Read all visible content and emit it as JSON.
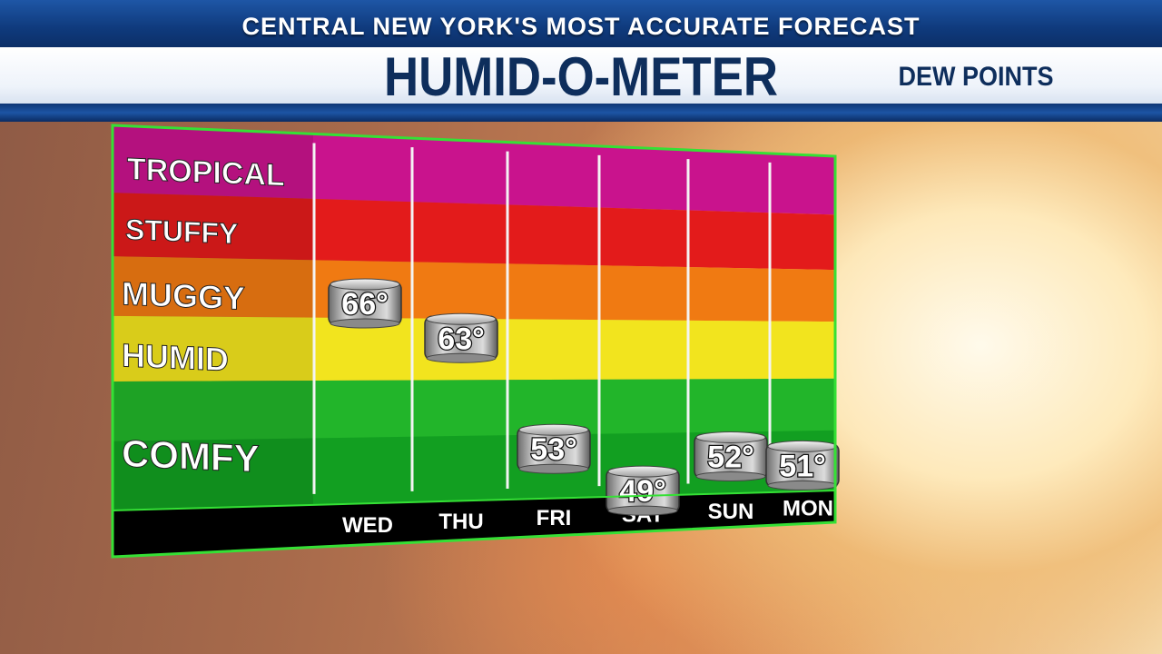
{
  "header": {
    "tagline": "CENTRAL NEW YORK'S MOST ACCURATE FORECAST",
    "title": "HUMID-O-METER",
    "subtitle": "DEW POINTS"
  },
  "colors": {
    "tropical": "#c9138d",
    "stuffy": "#e31b1b",
    "muggy": "#f07a12",
    "humid": "#f2e41e",
    "comfy_top": "#22b52a",
    "comfy_bottom": "#0f9a1f",
    "frame": "#35e035"
  },
  "chart_data": {
    "type": "table",
    "title": "HUMID-O-METER",
    "subtitle": "DEW POINTS",
    "levels": [
      "TROPICAL",
      "STUFFY",
      "MUGGY",
      "HUMID",
      "COMFY"
    ],
    "categories": [
      "WED",
      "THU",
      "FRI",
      "SAT",
      "SUN",
      "MON"
    ],
    "values": [
      66,
      63,
      53,
      49,
      52,
      51
    ],
    "value_labels": [
      "66°",
      "63°",
      "53°",
      "49°",
      "52°",
      "51°"
    ]
  }
}
